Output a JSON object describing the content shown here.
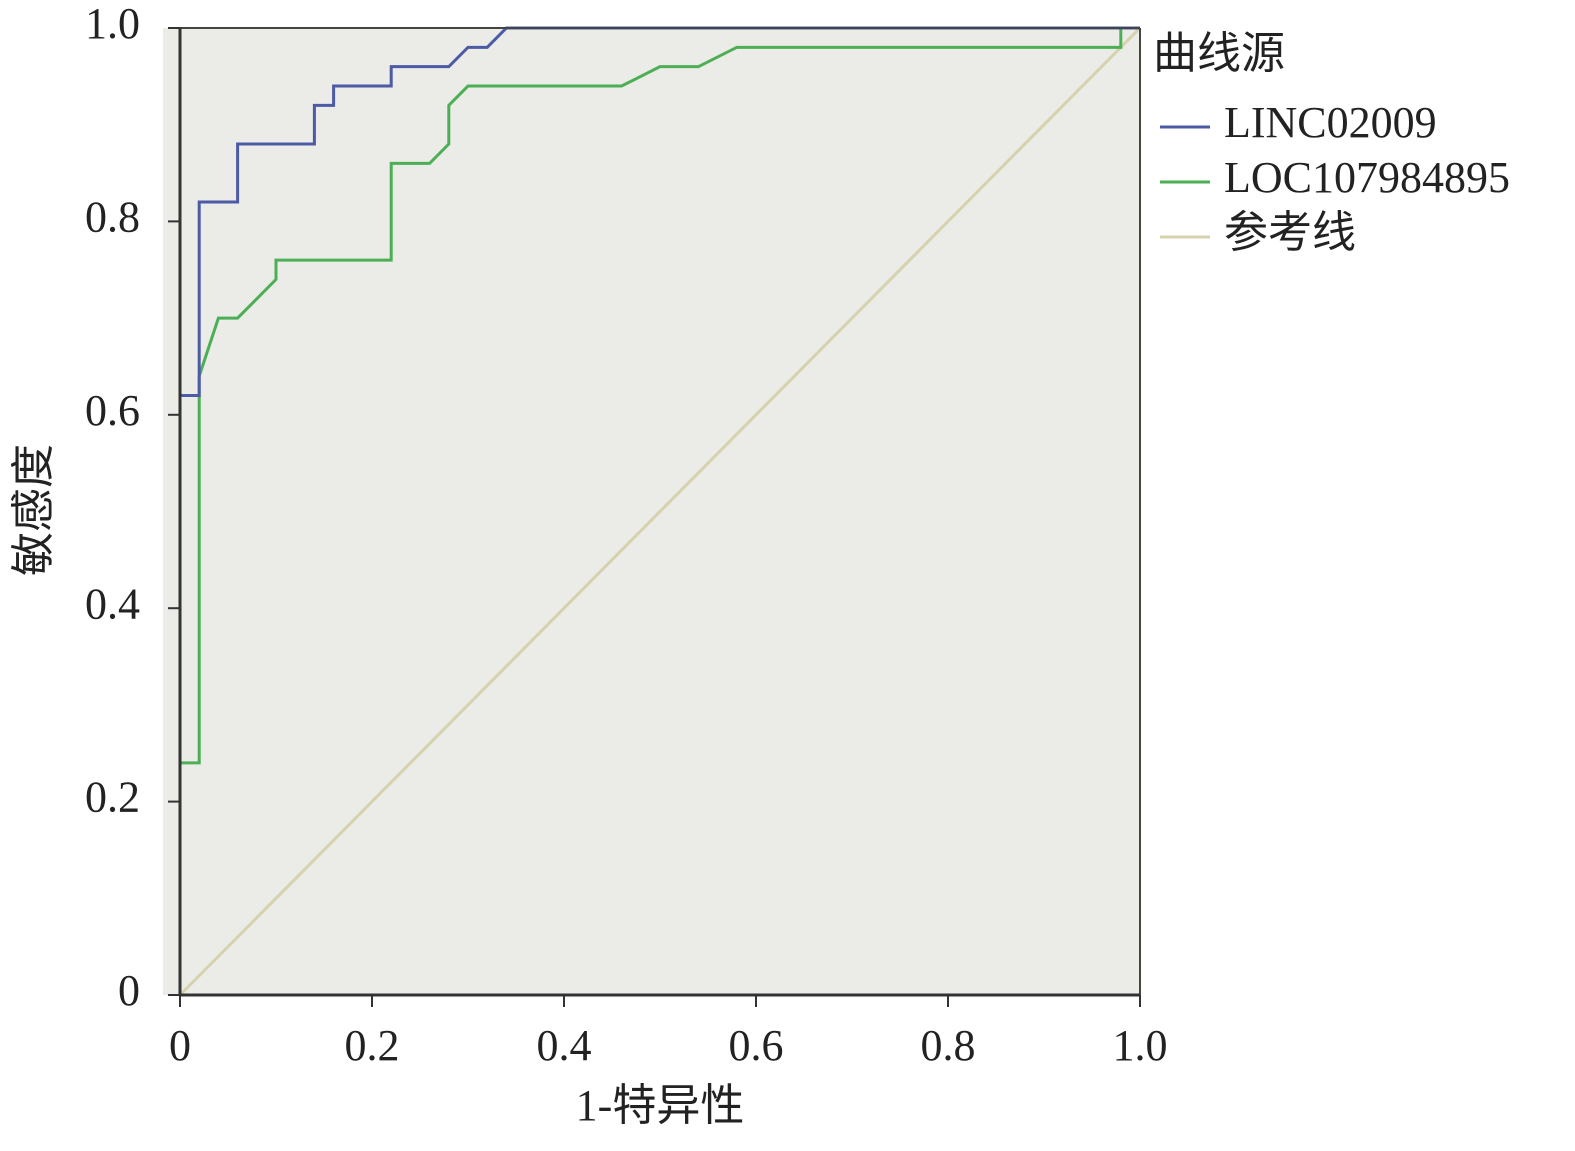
{
  "chart_data": {
    "type": "line",
    "x_label": "1-特异性",
    "y_label": "敏感度",
    "legend_title": "曲线源",
    "legend": "right",
    "background": "#ebebe7",
    "xlim": [
      0,
      1
    ],
    "ylim": [
      0,
      1
    ],
    "xticks": [
      0,
      0.2,
      0.4,
      0.6,
      0.8,
      {
        "value": 1,
        "label": "1.0"
      }
    ],
    "yticks": [
      0,
      0.2,
      0.4,
      0.6,
      0.8,
      {
        "value": 1,
        "label": "1.0"
      }
    ],
    "series": [
      {
        "name": "LINC02009",
        "color": "#4d5aa6",
        "x": [
          0,
          0,
          0.02,
          0.02,
          0.06,
          0.06,
          0.14,
          0.14,
          0.16,
          0.16,
          0.22,
          0.22,
          0.28,
          0.3,
          0.32,
          0.34,
          1
        ],
        "values": [
          0,
          0.62,
          0.62,
          0.82,
          0.82,
          0.88,
          0.88,
          0.92,
          0.92,
          0.94,
          0.94,
          0.96,
          0.96,
          0.98,
          0.98,
          1,
          1
        ]
      },
      {
        "name": "LOC107984895",
        "color": "#4caf55",
        "x": [
          0,
          0,
          0.02,
          0.02,
          0.04,
          0.06,
          0.1,
          0.1,
          0.22,
          0.22,
          0.26,
          0.28,
          0.28,
          0.3,
          0.46,
          0.5,
          0.54,
          0.58,
          0.98,
          0.98,
          1
        ],
        "values": [
          0,
          0.24,
          0.24,
          0.64,
          0.7,
          0.7,
          0.74,
          0.76,
          0.76,
          0.86,
          0.86,
          0.88,
          0.92,
          0.94,
          0.94,
          0.96,
          0.96,
          0.98,
          0.98,
          1,
          1
        ]
      },
      {
        "name": "参考线",
        "color": "#d6d2ad",
        "x": [
          0,
          1
        ],
        "values": [
          0,
          1
        ]
      }
    ]
  }
}
